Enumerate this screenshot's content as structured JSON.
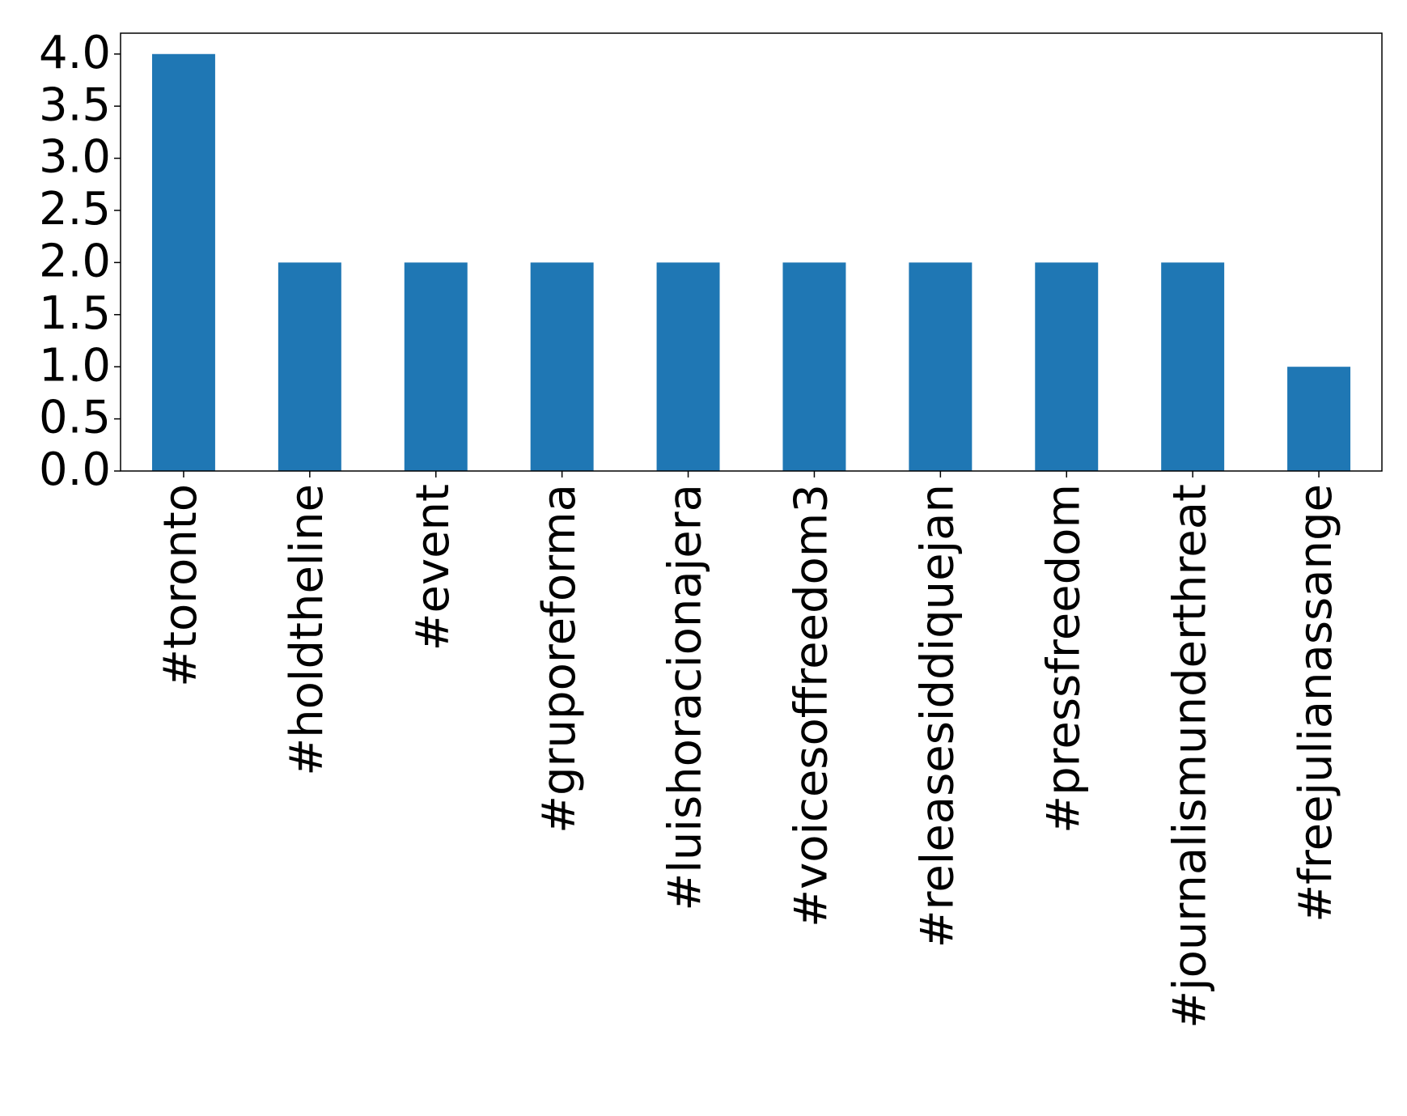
{
  "chart_data": {
    "type": "bar",
    "categories": [
      "#toronto",
      "#holdtheline",
      "#event",
      "#gruporeforma",
      "#luishoracionajera",
      "#voicesoffreedom3",
      "#releasesiddiquejan",
      "#pressfreedom",
      "#journalismunderthreat",
      "#freejulianassange"
    ],
    "values": [
      4,
      2,
      2,
      2,
      2,
      2,
      2,
      2,
      2,
      1
    ],
    "color": "#1f77b4",
    "ylim": [
      0,
      4.2
    ],
    "yticks": [
      {
        "value": 0,
        "label": "0.0"
      },
      {
        "value": 0.5,
        "label": "0.5"
      },
      {
        "value": 1,
        "label": "1.0"
      },
      {
        "value": 1.5,
        "label": "1.5"
      },
      {
        "value": 2,
        "label": "2.0"
      },
      {
        "value": 2.5,
        "label": "2.5"
      },
      {
        "value": 3,
        "label": "3.0"
      },
      {
        "value": 3.5,
        "label": "3.5"
      },
      {
        "value": 4,
        "label": "4.0"
      }
    ],
    "grid": false
  }
}
